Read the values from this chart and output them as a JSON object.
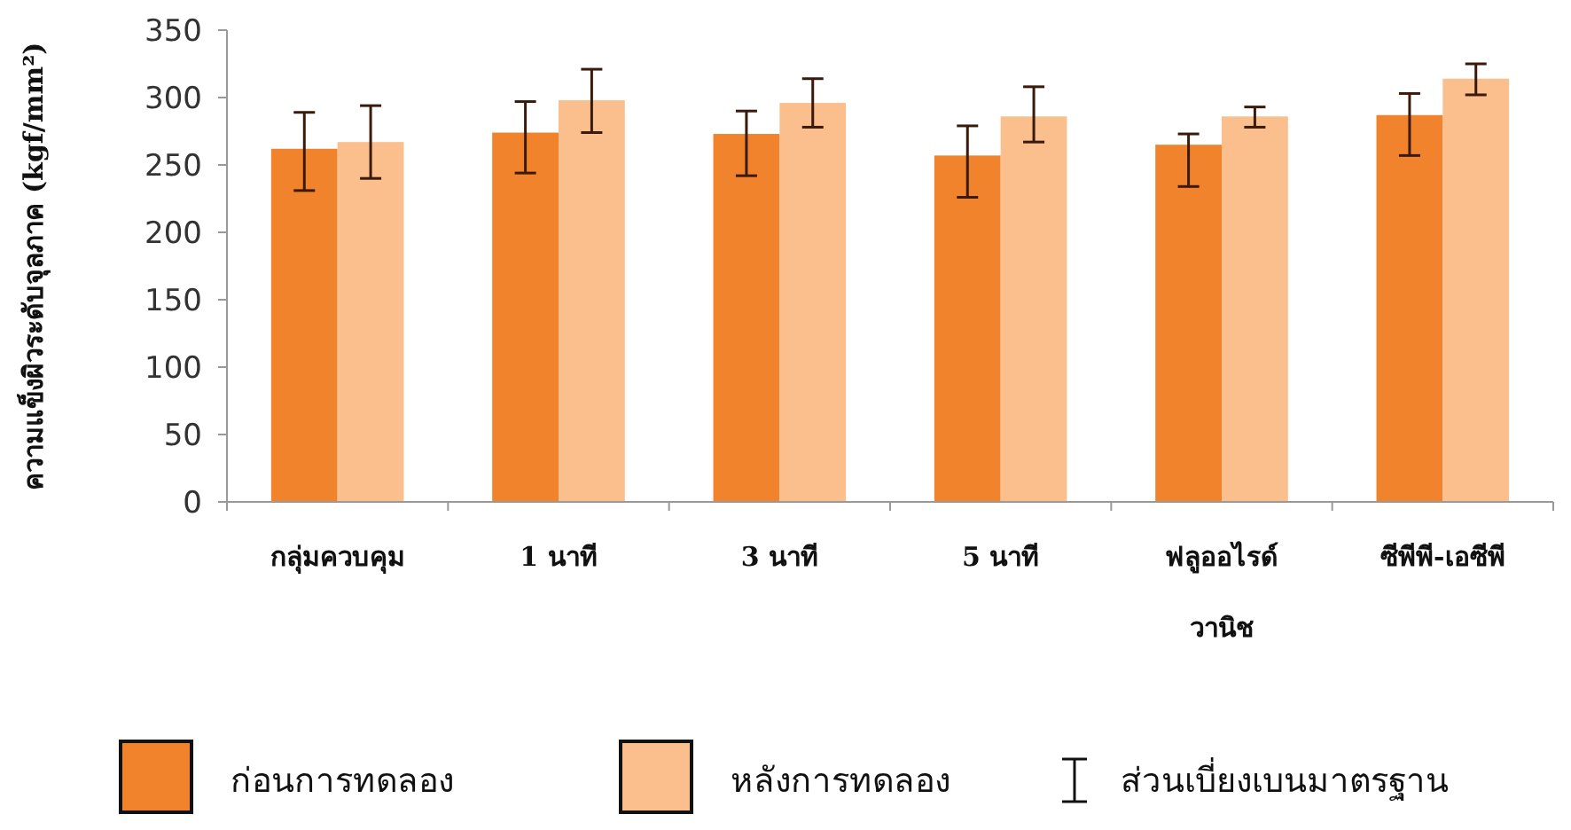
{
  "chart_data": {
    "type": "bar",
    "ylabel": "ความแข็งผิวระดับจุลภาค (kgf/mm²)",
    "categories": [
      "กลุ่มควบคุม",
      "1 นาที",
      "3 นาที",
      "5 นาที",
      "ฟลูออไรด์ วานิช",
      "ซีพีพี-เอซีพี"
    ],
    "series": [
      {
        "name": "ก่อนการทดลอง",
        "color": "#f0832b",
        "values": [
          262,
          274,
          273,
          257,
          265,
          287
        ],
        "errors": [
          [
            231,
            289
          ],
          [
            244,
            297
          ],
          [
            242,
            290
          ],
          [
            226,
            279
          ],
          [
            234,
            273
          ],
          [
            257,
            303
          ]
        ]
      },
      {
        "name": "หลังการทดลอง",
        "color": "#fbbf8d",
        "values": [
          267,
          298,
          296,
          286,
          286,
          314
        ],
        "errors": [
          [
            240,
            294
          ],
          [
            274,
            321
          ],
          [
            278,
            314
          ],
          [
            267,
            308
          ],
          [
            278,
            293
          ],
          [
            302,
            325
          ]
        ]
      }
    ],
    "ylim": [
      0,
      350
    ],
    "yticks": [
      0,
      50,
      100,
      150,
      200,
      250,
      300,
      350
    ],
    "grid": false,
    "legend": "bottom",
    "annotations": [
      "ส่วนเบี่ยงเบนมาตรฐาน"
    ]
  }
}
